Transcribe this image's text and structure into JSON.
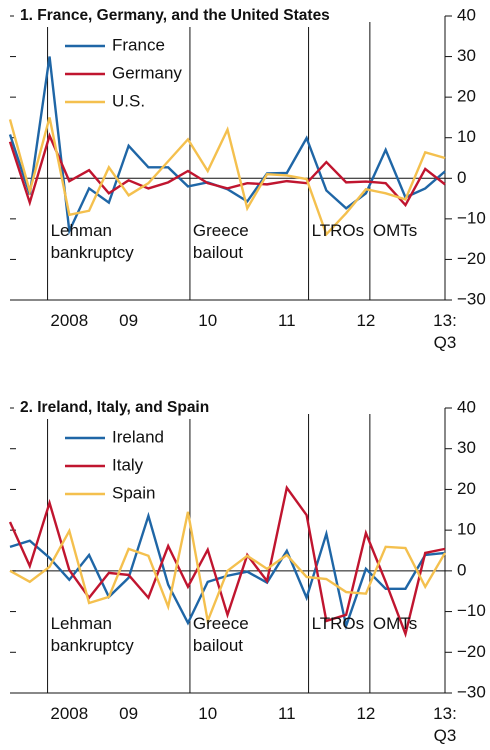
{
  "chart_data": [
    {
      "type": "line",
      "title": "1. France, Germany, and the United States",
      "categories": [
        null,
        null,
        null,
        "2008",
        null,
        null,
        "09",
        null,
        null,
        null,
        "10",
        null,
        null,
        null,
        "11",
        null,
        null,
        null,
        "12",
        null,
        null,
        null,
        "13:\nQ3"
      ],
      "series": [
        {
          "name": "France",
          "color": "#1f66a6",
          "values": [
            10.8,
            -4,
            30,
            -13,
            -2.5,
            -6,
            8,
            2.7,
            2.7,
            -2,
            -1,
            -2.7,
            -5.7,
            1.2,
            1.3,
            9.9,
            -3,
            -7.4,
            -3.7,
            7,
            -4.7,
            -2.5,
            1.7
          ]
        },
        {
          "name": "Germany",
          "color": "#c0152f",
          "values": [
            9,
            -6,
            10.5,
            -0.7,
            2,
            -3.7,
            -0.5,
            -2.5,
            -1,
            1.8,
            -1.2,
            -2.5,
            -1.2,
            -1.5,
            -0.7,
            -1.2,
            4,
            -1,
            -0.8,
            -1.2,
            -6.6,
            2.3,
            -1.5
          ]
        },
        {
          "name": "U.S.",
          "color": "#f4c04e",
          "values": [
            14.5,
            -3.2,
            15,
            -9,
            -8,
            2.7,
            -4.2,
            -1.2,
            4.2,
            9.6,
            1.8,
            12,
            -7.4,
            1,
            0.7,
            -0.2,
            -13.8,
            -8.6,
            -2.7,
            -3.7,
            -5.2,
            6.4,
            5
          ]
        }
      ],
      "ylim": [
        -30,
        40
      ],
      "yticks": [
        40,
        30,
        20,
        10,
        0,
        {
          "value": -10,
          "label": "−10"
        },
        {
          "value": -20,
          "label": "−20"
        },
        {
          "value": -30,
          "label": "−30"
        }
      ],
      "legend": "upper left",
      "annotations": [
        {
          "text": "Lehman\nbankruptcy",
          "x": 1.9
        },
        {
          "text": "Greece\nbailout",
          "x": 9.1
        },
        {
          "text": "LTROs",
          "x": 15.1
        },
        {
          "text": "OMTs",
          "x": 18.2
        }
      ]
    },
    {
      "type": "line",
      "title": "2. Ireland, Italy, and Spain",
      "categories": [
        null,
        null,
        null,
        "2008",
        null,
        null,
        "09",
        null,
        null,
        null,
        "10",
        null,
        null,
        null,
        "11",
        null,
        null,
        null,
        "12",
        null,
        null,
        null,
        "13:\nQ3"
      ],
      "series": [
        {
          "name": "Ireland",
          "color": "#1f66a6",
          "values": [
            5.9,
            7.4,
            3.2,
            -2.2,
            3.9,
            -6.4,
            -1.7,
            13.5,
            -3.4,
            -12.8,
            -2.7,
            -1.2,
            -0.2,
            -2.9,
            4.9,
            -6.6,
            9.1,
            -13.5,
            0.5,
            -4.4,
            -4.4,
            3.9,
            4.4
          ]
        },
        {
          "name": "Italy",
          "color": "#c0152f",
          "values": [
            12,
            1.2,
            16.7,
            0.2,
            -6.6,
            -0.5,
            -1,
            -6.6,
            6.1,
            -3.9,
            5.2,
            -10.8,
            3.9,
            -2.5,
            20.4,
            13.7,
            -12.3,
            -10.8,
            9.3,
            -2.7,
            -15.5,
            4.4,
            5.4
          ]
        },
        {
          "name": "Spain",
          "color": "#f4c04e",
          "values": [
            0,
            -2.7,
            1,
            9.8,
            -7.9,
            -6.4,
            5.4,
            3.7,
            -8.8,
            14.5,
            -12.3,
            0,
            3.7,
            0.5,
            3.9,
            -1.5,
            -2,
            -5.2,
            -5.6,
            5.9,
            5.6,
            -3.9,
            4.4
          ]
        }
      ],
      "ylim": [
        -30,
        40
      ],
      "yticks": [
        40,
        30,
        20,
        10,
        0,
        {
          "value": -10,
          "label": "−10"
        },
        {
          "value": -20,
          "label": "−20"
        },
        {
          "value": -30,
          "label": "−30"
        }
      ],
      "legend": "upper left",
      "annotations": [
        {
          "text": "Lehman\nbankruptcy",
          "x": 1.9
        },
        {
          "text": "Greece\nbailout",
          "x": 9.1
        },
        {
          "text": "LTROs",
          "x": 15.1
        },
        {
          "text": "OMTs",
          "x": 18.2
        }
      ]
    }
  ]
}
